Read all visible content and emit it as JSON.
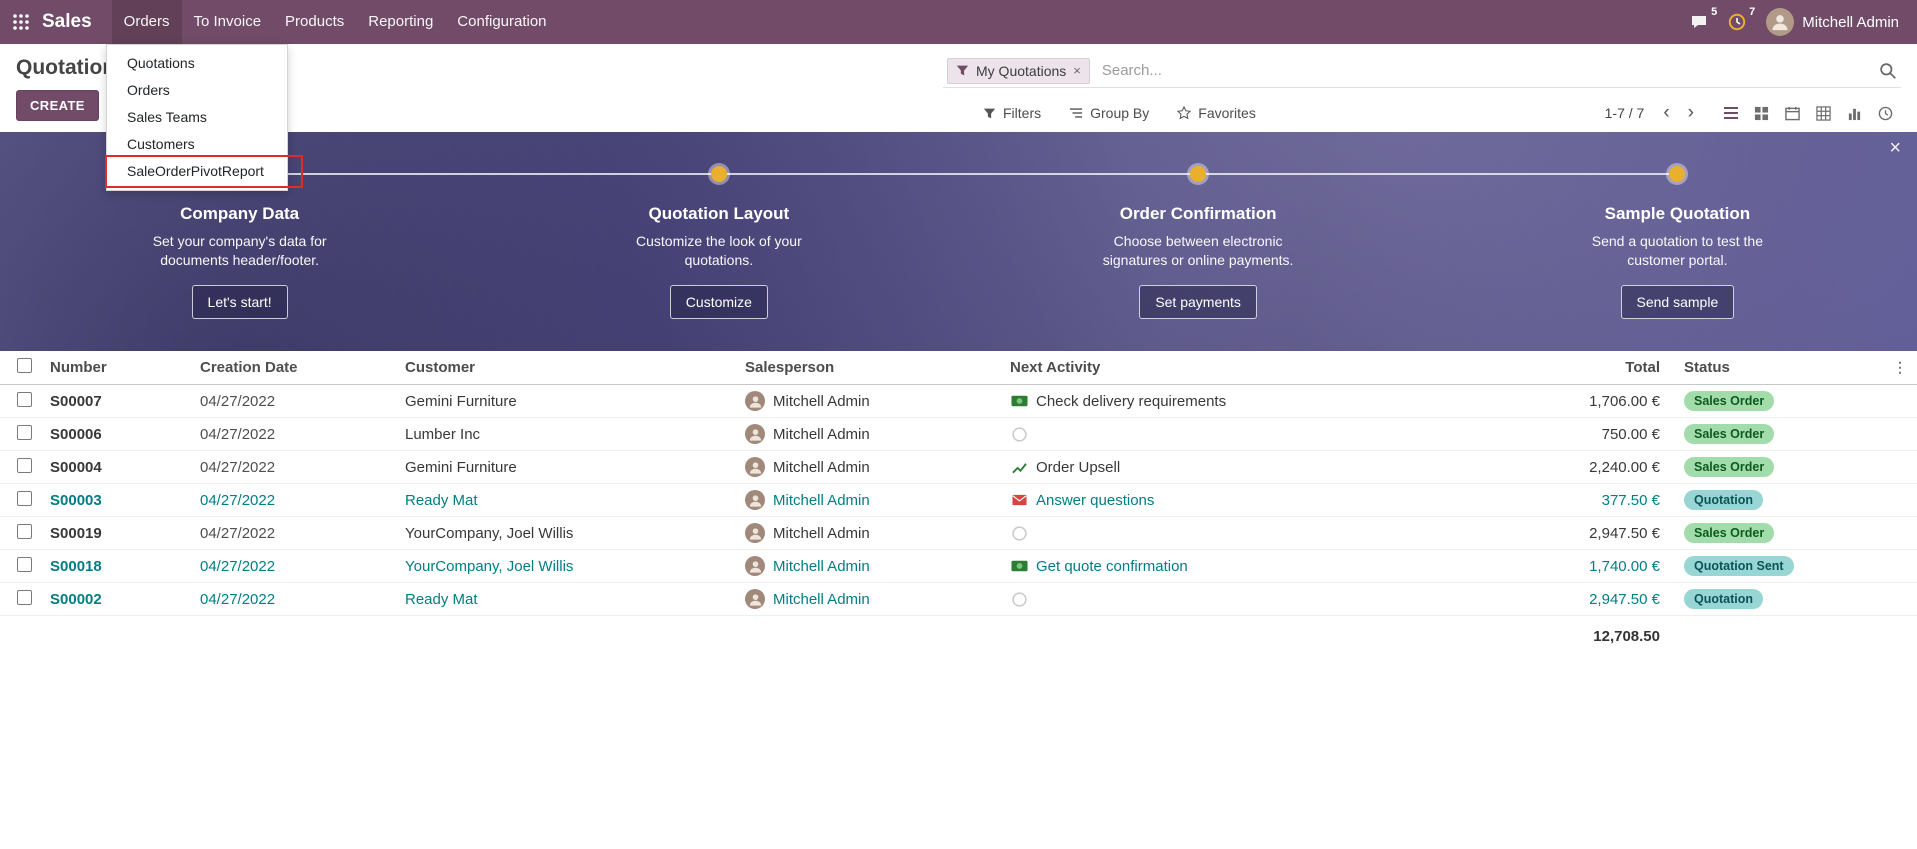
{
  "navbar": {
    "app_name": "Sales",
    "menus": [
      {
        "label": "Orders",
        "active": true
      },
      {
        "label": "To Invoice",
        "active": false
      },
      {
        "label": "Products",
        "active": false
      },
      {
        "label": "Reporting",
        "active": false
      },
      {
        "label": "Configuration",
        "active": false
      }
    ],
    "message_count": "5",
    "activity_count": "7",
    "user_name": "Mitchell Admin"
  },
  "orders_dropdown": {
    "items": [
      {
        "label": "Quotations",
        "annotated": false
      },
      {
        "label": "Orders",
        "annotated": false
      },
      {
        "label": "Sales Teams",
        "annotated": false
      },
      {
        "label": "Customers",
        "annotated": false
      },
      {
        "label": "SaleOrderPivotReport",
        "annotated": true
      }
    ]
  },
  "control_panel": {
    "title": "Quotations",
    "create_label": "CREATE",
    "search": {
      "facet_label": "My Quotations",
      "remove_label": "×",
      "placeholder": "Search..."
    },
    "filters_label": "Filters",
    "group_by_label": "Group By",
    "favorites_label": "Favorites",
    "pager": "1-7 / 7",
    "prev_label": "‹",
    "next_label": "›"
  },
  "onboarding": {
    "close_label": "×",
    "steps": [
      {
        "title": "Company Data",
        "description": "Set your company's data for documents header/footer.",
        "button": "Let's start!"
      },
      {
        "title": "Quotation Layout",
        "description": "Customize the look of your quotations.",
        "button": "Customize"
      },
      {
        "title": "Order Confirmation",
        "description": "Choose between electronic signatures or online payments.",
        "button": "Set payments"
      },
      {
        "title": "Sample Quotation",
        "description": "Send a quotation to test the customer portal.",
        "button": "Send sample"
      }
    ]
  },
  "table": {
    "columns": [
      "Number",
      "Creation Date",
      "Customer",
      "Salesperson",
      "Next Activity",
      "Total",
      "Status"
    ],
    "rows": [
      {
        "number": "S00007",
        "date": "04/27/2022",
        "customer": "Gemini Furniture",
        "salesperson": "Mitchell Admin",
        "activity_icon": "money",
        "activity": "Check delivery requirements",
        "total": "1,706.00 €",
        "status": "Sales Order",
        "status_type": "success",
        "teal": false
      },
      {
        "number": "S00006",
        "date": "04/27/2022",
        "customer": "Lumber Inc",
        "salesperson": "Mitchell Admin",
        "activity_icon": "clock",
        "activity": "",
        "total": "750.00 €",
        "status": "Sales Order",
        "status_type": "success",
        "teal": false
      },
      {
        "number": "S00004",
        "date": "04/27/2022",
        "customer": "Gemini Furniture",
        "salesperson": "Mitchell Admin",
        "activity_icon": "chart",
        "activity": "Order Upsell",
        "total": "2,240.00 €",
        "status": "Sales Order",
        "status_type": "success",
        "teal": false
      },
      {
        "number": "S00003",
        "date": "04/27/2022",
        "customer": "Ready Mat",
        "salesperson": "Mitchell Admin",
        "activity_icon": "envelope",
        "activity": "Answer questions",
        "total": "377.50 €",
        "status": "Quotation",
        "status_type": "info",
        "teal": true
      },
      {
        "number": "S00019",
        "date": "04/27/2022",
        "customer": "YourCompany, Joel Willis",
        "salesperson": "Mitchell Admin",
        "activity_icon": "clock",
        "activity": "",
        "total": "2,947.50 €",
        "status": "Sales Order",
        "status_type": "success",
        "teal": false
      },
      {
        "number": "S00018",
        "date": "04/27/2022",
        "customer": "YourCompany, Joel Willis",
        "salesperson": "Mitchell Admin",
        "activity_icon": "money",
        "activity": "Get quote confirmation",
        "total": "1,740.00 €",
        "status": "Quotation Sent",
        "status_type": "info",
        "teal": true
      },
      {
        "number": "S00002",
        "date": "04/27/2022",
        "customer": "Ready Mat",
        "salesperson": "Mitchell Admin",
        "activity_icon": "clock",
        "activity": "",
        "total": "2,947.50 €",
        "status": "Quotation",
        "status_type": "info",
        "teal": true
      }
    ],
    "footer_total": "12,708.50"
  },
  "colors": {
    "navbar_bg": "#714B67",
    "accent_teal": "#017E84",
    "annotation_red": "#E02B2B",
    "badge_success_bg": "#A3DCAB",
    "badge_info_bg": "#97D6D4",
    "step_dot": "#E9B02E"
  }
}
